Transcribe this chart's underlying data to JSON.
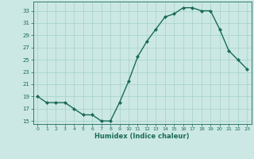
{
  "x": [
    0,
    1,
    2,
    3,
    4,
    5,
    6,
    7,
    8,
    9,
    10,
    11,
    12,
    13,
    14,
    15,
    16,
    17,
    18,
    19,
    20,
    21,
    22,
    23
  ],
  "y": [
    19,
    18,
    18,
    18,
    17,
    16,
    16,
    15,
    15,
    18,
    21.5,
    25.5,
    28,
    30,
    32,
    32.5,
    33.5,
    33.5,
    33,
    33,
    30,
    26.5,
    25,
    23.5
  ],
  "xlabel": "Humidex (Indice chaleur)",
  "line_color": "#1a6b5a",
  "marker_color": "#1a6b5a",
  "bg_color": "#cce8e4",
  "grid_color": "#aad4ce",
  "tick_label_color": "#1a6b5a",
  "ylim": [
    14.5,
    34.5
  ],
  "yticks": [
    15,
    17,
    19,
    21,
    23,
    25,
    27,
    29,
    31,
    33
  ],
  "xlim": [
    -0.5,
    23.5
  ],
  "xticks": [
    0,
    1,
    2,
    3,
    4,
    5,
    6,
    7,
    8,
    9,
    10,
    11,
    12,
    13,
    14,
    15,
    16,
    17,
    18,
    19,
    20,
    21,
    22,
    23
  ]
}
